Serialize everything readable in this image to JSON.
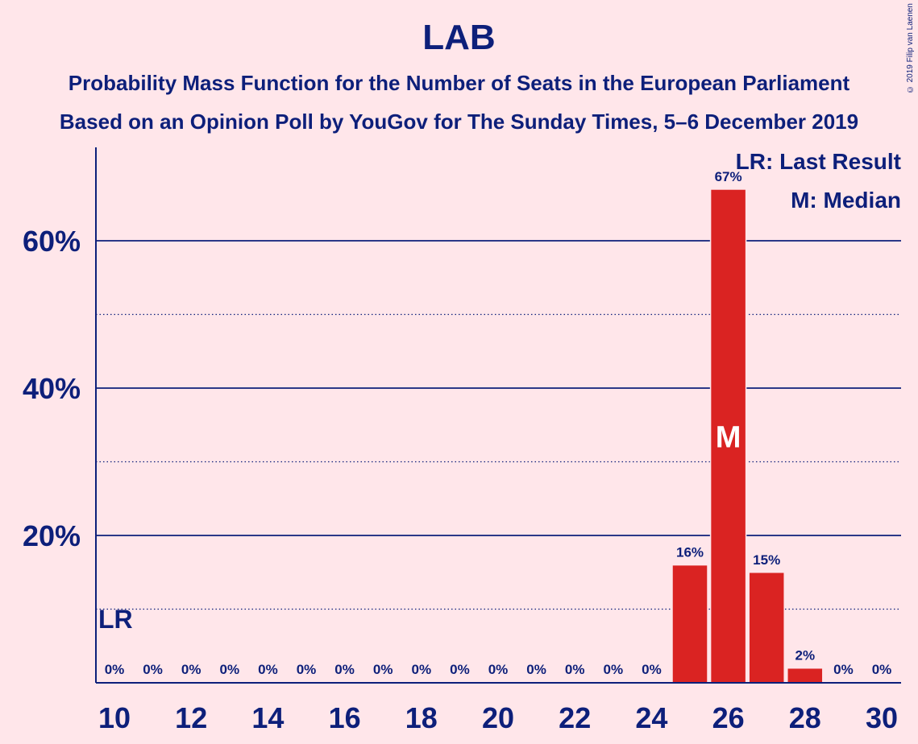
{
  "title": "LAB",
  "subtitle1": "Probability Mass Function for the Number of Seats in the European Parliament",
  "subtitle2": "Based on an Opinion Poll by YouGov for The Sunday Times, 5–6 December 2019",
  "copyright": "© 2019 Filip van Laenen",
  "legend": {
    "lr": "LR: Last Result",
    "m": "M: Median"
  },
  "markers": {
    "lr_label": "LR",
    "median_label": "M"
  },
  "colors": {
    "bar": "#DA2322",
    "text": "#0D1F7A",
    "background": "#FFE6EA"
  },
  "chart_data": {
    "type": "bar",
    "x": [
      10,
      11,
      12,
      13,
      14,
      15,
      16,
      17,
      18,
      19,
      20,
      21,
      22,
      23,
      24,
      25,
      26,
      27,
      28,
      29,
      30
    ],
    "values": [
      0,
      0,
      0,
      0,
      0,
      0,
      0,
      0,
      0,
      0,
      0,
      0,
      0,
      0,
      0,
      16,
      67,
      15,
      2,
      0,
      0
    ],
    "value_labels": [
      "0%",
      "0%",
      "0%",
      "0%",
      "0%",
      "0%",
      "0%",
      "0%",
      "0%",
      "0%",
      "0%",
      "0%",
      "0%",
      "0%",
      "0%",
      "16%",
      "67%",
      "15%",
      "2%",
      "0%",
      "0%"
    ],
    "xticks": [
      "10",
      "12",
      "14",
      "16",
      "18",
      "20",
      "22",
      "24",
      "26",
      "28",
      "30"
    ],
    "yticks": [
      "20%",
      "40%",
      "60%"
    ],
    "ylim": [
      0,
      72
    ],
    "median_seat": 26,
    "last_result_seat": 10,
    "grid": true
  }
}
